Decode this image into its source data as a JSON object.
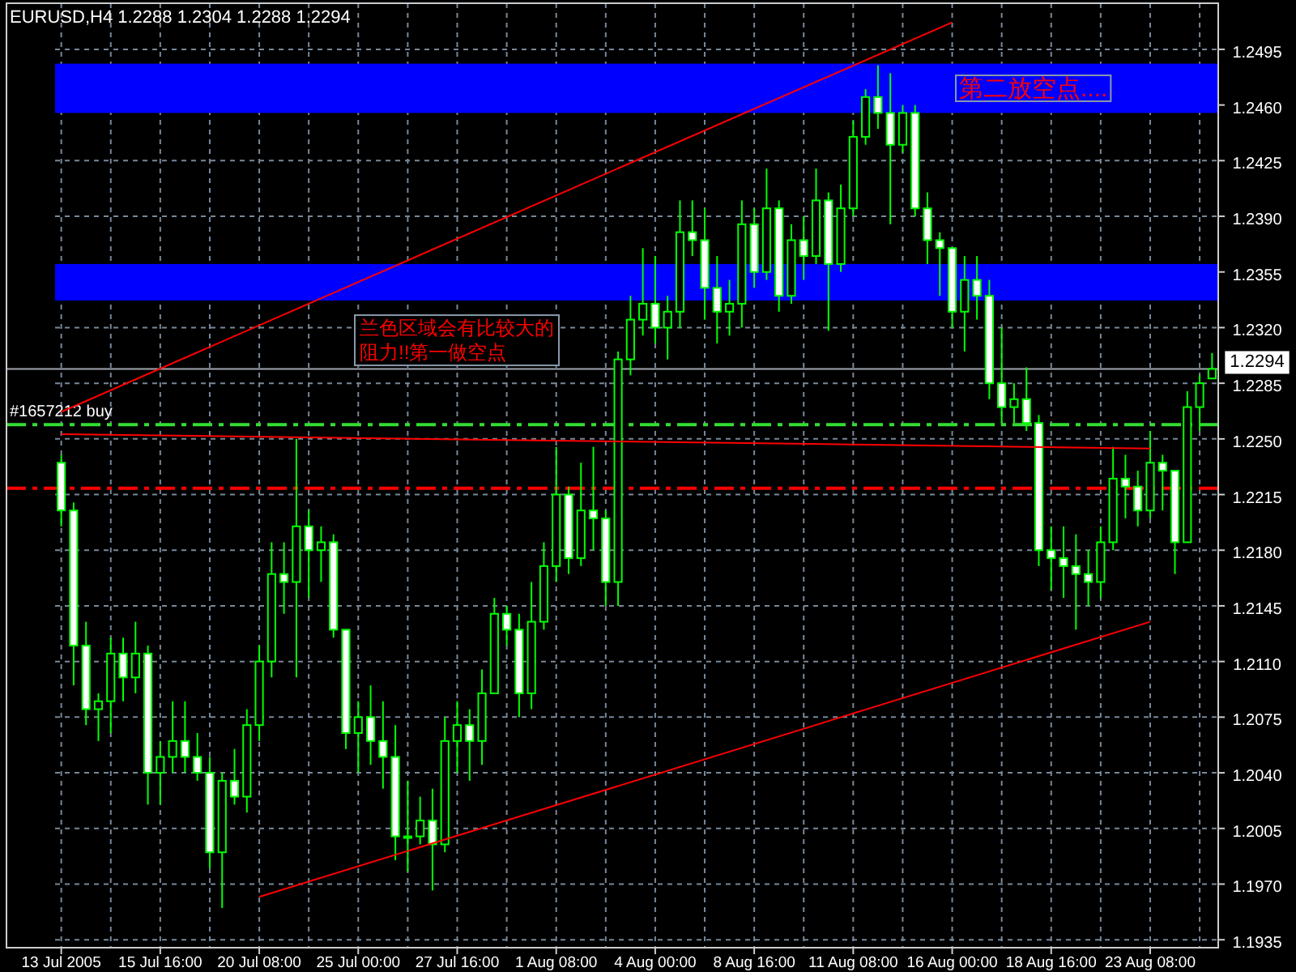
{
  "chart_data": {
    "type": "candlestick",
    "title": "EURUSD,H4  1.2288 1.2304 1.2288 1.2294",
    "categories": [
      "13 Jul 2005",
      null,
      null,
      null,
      null,
      null,
      null,
      null,
      "15 Jul 16:00",
      null,
      null,
      null,
      null,
      null,
      null,
      null,
      "20 Jul 08:00",
      null,
      null,
      null,
      null,
      null,
      null,
      null,
      "25 Jul 00:00",
      null,
      null,
      null,
      null,
      null,
      null,
      null,
      "27 Jul 16:00",
      null,
      null,
      null,
      null,
      null,
      null,
      null,
      "1 Aug 08:00",
      null,
      null,
      null,
      null,
      null,
      null,
      null,
      "4 Aug 00:00",
      null,
      null,
      null,
      null,
      null,
      null,
      null,
      "8 Aug 16:00",
      null,
      null,
      null,
      null,
      null,
      null,
      null,
      "11 Aug 08:00",
      null,
      null,
      null,
      null,
      null,
      null,
      null,
      "16 Aug 00:00",
      null,
      null,
      null,
      null,
      null,
      null,
      null,
      "18 Aug 16:00",
      null,
      null,
      null,
      null,
      null,
      null,
      null,
      "23 Aug 08:00",
      null,
      null,
      null,
      null,
      null
    ],
    "series": [
      {
        "type": "candlestick",
        "color": "#00ff00",
        "ohlc": [
          [
            1.2235,
            1.224,
            1.2195,
            1.2205
          ],
          [
            1.2205,
            1.221,
            1.2095,
            1.212
          ],
          [
            1.212,
            1.2135,
            1.207,
            1.208
          ],
          [
            1.208,
            1.209,
            1.206,
            1.2085
          ],
          [
            1.2085,
            1.2125,
            1.2065,
            1.2115
          ],
          [
            1.2115,
            1.2125,
            1.2085,
            1.21
          ],
          [
            1.21,
            1.2135,
            1.209,
            1.2115
          ],
          [
            1.2115,
            1.212,
            1.202,
            1.204
          ],
          [
            1.204,
            1.206,
            1.202,
            1.205
          ],
          [
            1.205,
            1.2085,
            1.204,
            1.206
          ],
          [
            1.206,
            1.2085,
            1.204,
            1.205
          ],
          [
            1.205,
            1.2065,
            1.2035,
            1.204
          ],
          [
            1.204,
            1.205,
            1.198,
            1.199
          ],
          [
            1.199,
            1.204,
            1.1955,
            1.2035
          ],
          [
            1.2035,
            1.2055,
            1.202,
            1.2025
          ],
          [
            1.2025,
            1.208,
            1.2015,
            1.207
          ],
          [
            1.207,
            1.212,
            1.206,
            1.211
          ],
          [
            1.211,
            1.2185,
            1.21,
            1.2165
          ],
          [
            1.2165,
            1.2185,
            1.214,
            1.216
          ],
          [
            1.216,
            1.225,
            1.21,
            1.2195
          ],
          [
            1.2195,
            1.2205,
            1.215,
            1.218
          ],
          [
            1.218,
            1.2195,
            1.216,
            1.2185
          ],
          [
            1.2185,
            1.219,
            1.2125,
            1.213
          ],
          [
            1.213,
            1.213,
            1.2055,
            1.2065
          ],
          [
            1.2065,
            1.2085,
            1.204,
            1.2075
          ],
          [
            1.2075,
            1.2095,
            1.2045,
            1.206
          ],
          [
            1.206,
            1.2085,
            1.203,
            1.205
          ],
          [
            1.205,
            1.207,
            1.1985,
            1.2
          ],
          [
            1.2,
            1.2035,
            1.1978,
            1.2
          ],
          [
            1.2,
            1.2025,
            1.1995,
            1.201
          ],
          [
            1.201,
            1.203,
            1.1966,
            1.1995
          ],
          [
            1.1995,
            1.2075,
            1.199,
            1.206
          ],
          [
            1.206,
            1.2085,
            1.204,
            1.207
          ],
          [
            1.207,
            1.208,
            1.2035,
            1.206
          ],
          [
            1.206,
            1.2105,
            1.2045,
            1.209
          ],
          [
            1.209,
            1.215,
            1.209,
            1.214
          ],
          [
            1.214,
            1.2145,
            1.212,
            1.213
          ],
          [
            1.213,
            1.214,
            1.2075,
            1.209
          ],
          [
            1.209,
            1.216,
            1.208,
            1.2135
          ],
          [
            1.2135,
            1.2185,
            1.213,
            1.217
          ],
          [
            1.217,
            1.2245,
            1.216,
            1.2215
          ],
          [
            1.2215,
            1.222,
            1.2165,
            1.2175
          ],
          [
            1.2175,
            1.2235,
            1.217,
            1.2205
          ],
          [
            1.2205,
            1.2245,
            1.218,
            1.22
          ],
          [
            1.22,
            1.2205,
            1.2145,
            1.216
          ],
          [
            1.216,
            1.2305,
            1.2145,
            1.23
          ],
          [
            1.23,
            1.234,
            1.229,
            1.2325
          ],
          [
            1.2325,
            1.237,
            1.2315,
            1.2335
          ],
          [
            1.2335,
            1.2365,
            1.231,
            1.232
          ],
          [
            1.232,
            1.234,
            1.23,
            1.233
          ],
          [
            1.233,
            1.24,
            1.232,
            1.238
          ],
          [
            1.238,
            1.24,
            1.2365,
            1.2375
          ],
          [
            1.2375,
            1.2395,
            1.2325,
            1.2345
          ],
          [
            1.2345,
            1.2365,
            1.231,
            1.233
          ],
          [
            1.233,
            1.235,
            1.2315,
            1.2335
          ],
          [
            1.2335,
            1.24,
            1.232,
            1.2385
          ],
          [
            1.2385,
            1.2395,
            1.2345,
            1.2355
          ],
          [
            1.2355,
            1.242,
            1.235,
            1.2395
          ],
          [
            1.2395,
            1.24,
            1.233,
            1.234
          ],
          [
            1.234,
            1.2385,
            1.2335,
            1.2375
          ],
          [
            1.2375,
            1.239,
            1.235,
            1.2365
          ],
          [
            1.2365,
            1.242,
            1.236,
            1.24
          ],
          [
            1.24,
            1.2405,
            1.2318,
            1.236
          ],
          [
            1.236,
            1.241,
            1.2355,
            1.2395
          ],
          [
            1.2395,
            1.245,
            1.239,
            1.244
          ],
          [
            1.244,
            1.247,
            1.2435,
            1.2465
          ],
          [
            1.2465,
            1.2485,
            1.2445,
            1.2455
          ],
          [
            1.2455,
            1.248,
            1.2385,
            1.2435
          ],
          [
            1.2435,
            1.246,
            1.243,
            1.2455
          ],
          [
            1.2455,
            1.246,
            1.239,
            1.2395
          ],
          [
            1.2395,
            1.2405,
            1.236,
            1.2375
          ],
          [
            1.2375,
            1.238,
            1.234,
            1.237
          ],
          [
            1.237,
            1.237,
            1.232,
            1.233
          ],
          [
            1.233,
            1.2365,
            1.2305,
            1.235
          ],
          [
            1.235,
            1.2365,
            1.2325,
            1.234
          ],
          [
            1.234,
            1.235,
            1.2275,
            1.2285
          ],
          [
            1.2285,
            1.232,
            1.226,
            1.227
          ],
          [
            1.227,
            1.2285,
            1.226,
            1.2275
          ],
          [
            1.2275,
            1.2295,
            1.2255,
            1.226
          ],
          [
            1.226,
            1.2265,
            1.217,
            1.218
          ],
          [
            1.218,
            1.2195,
            1.2155,
            1.2175
          ],
          [
            1.2175,
            1.2195,
            1.215,
            1.217
          ],
          [
            1.217,
            1.219,
            1.213,
            1.2165
          ],
          [
            1.2165,
            1.218,
            1.2145,
            1.216
          ],
          [
            1.216,
            1.2195,
            1.215,
            1.2185
          ],
          [
            1.2185,
            1.2245,
            1.218,
            1.2225
          ],
          [
            1.2225,
            1.224,
            1.22,
            1.222
          ],
          [
            1.222,
            1.223,
            1.2195,
            1.2205
          ],
          [
            1.2205,
            1.2255,
            1.22,
            1.2235
          ],
          [
            1.2235,
            1.224,
            1.2205,
            1.223
          ],
          [
            1.223,
            1.223,
            1.2165,
            1.2185
          ],
          [
            1.2185,
            1.228,
            1.2185,
            1.227
          ],
          [
            1.227,
            1.229,
            1.2255,
            1.2285
          ],
          [
            1.2288,
            1.2304,
            1.2288,
            1.2294
          ]
        ]
      },
      {
        "type": "line",
        "color": "#ff0000",
        "x": [
          "13 Jul 2005",
          "16 Aug 00:00"
        ],
        "values": [
          1.2267,
          1.2512
        ]
      },
      {
        "type": "line",
        "color": "#ff0000",
        "x": [
          "20 Jul 08:00",
          "23 Aug 08:00"
        ],
        "values": [
          1.1962,
          1.2135
        ]
      },
      {
        "type": "line",
        "color": "#ff0000",
        "x": [
          "13 Jul 2005",
          "23 Aug 08:00"
        ],
        "values": [
          1.2253,
          1.2244
        ]
      }
    ],
    "ylim": [
      1.193,
      1.2524
    ],
    "yticks": [
      1.1935,
      {
        "value": 1.197,
        "label": "1.1970"
      },
      1.2005,
      {
        "value": 1.204,
        "label": "1.2040"
      },
      1.2075,
      {
        "value": 1.211,
        "label": "1.2110"
      },
      1.2145,
      {
        "value": 1.218,
        "label": "1.2180"
      },
      1.2215,
      {
        "value": 1.225,
        "label": "1.2250"
      },
      1.2285,
      {
        "value": 1.232,
        "label": "1.2320"
      },
      1.2355,
      {
        "value": 1.239,
        "label": "1.2390"
      },
      1.2425,
      {
        "value": 1.246,
        "label": "1.2460"
      },
      1.2495
    ],
    "grid": true,
    "ref_lines": [
      {
        "axis": "y",
        "value": 1.2294,
        "label": "1.2294",
        "color": "#a0a8b0",
        "line_style": "solid"
      },
      {
        "axis": "y",
        "value": 1.2259,
        "label": "#1657212 buy",
        "color": "#33dd33",
        "line_style": "dashed"
      },
      {
        "axis": "y",
        "value": 1.2219,
        "color": "#ff0000",
        "line_style": "dashed"
      }
    ],
    "bands": [
      {
        "axis": "y",
        "from": 1.2337,
        "to": 1.236,
        "label": "兰色区域会有比较大的阻力!!第一做空点",
        "color": "#0000ff"
      },
      {
        "axis": "y",
        "from": 1.2455,
        "to": 1.2486,
        "label": "第二放空点....",
        "color": "#0000ff"
      }
    ]
  }
}
